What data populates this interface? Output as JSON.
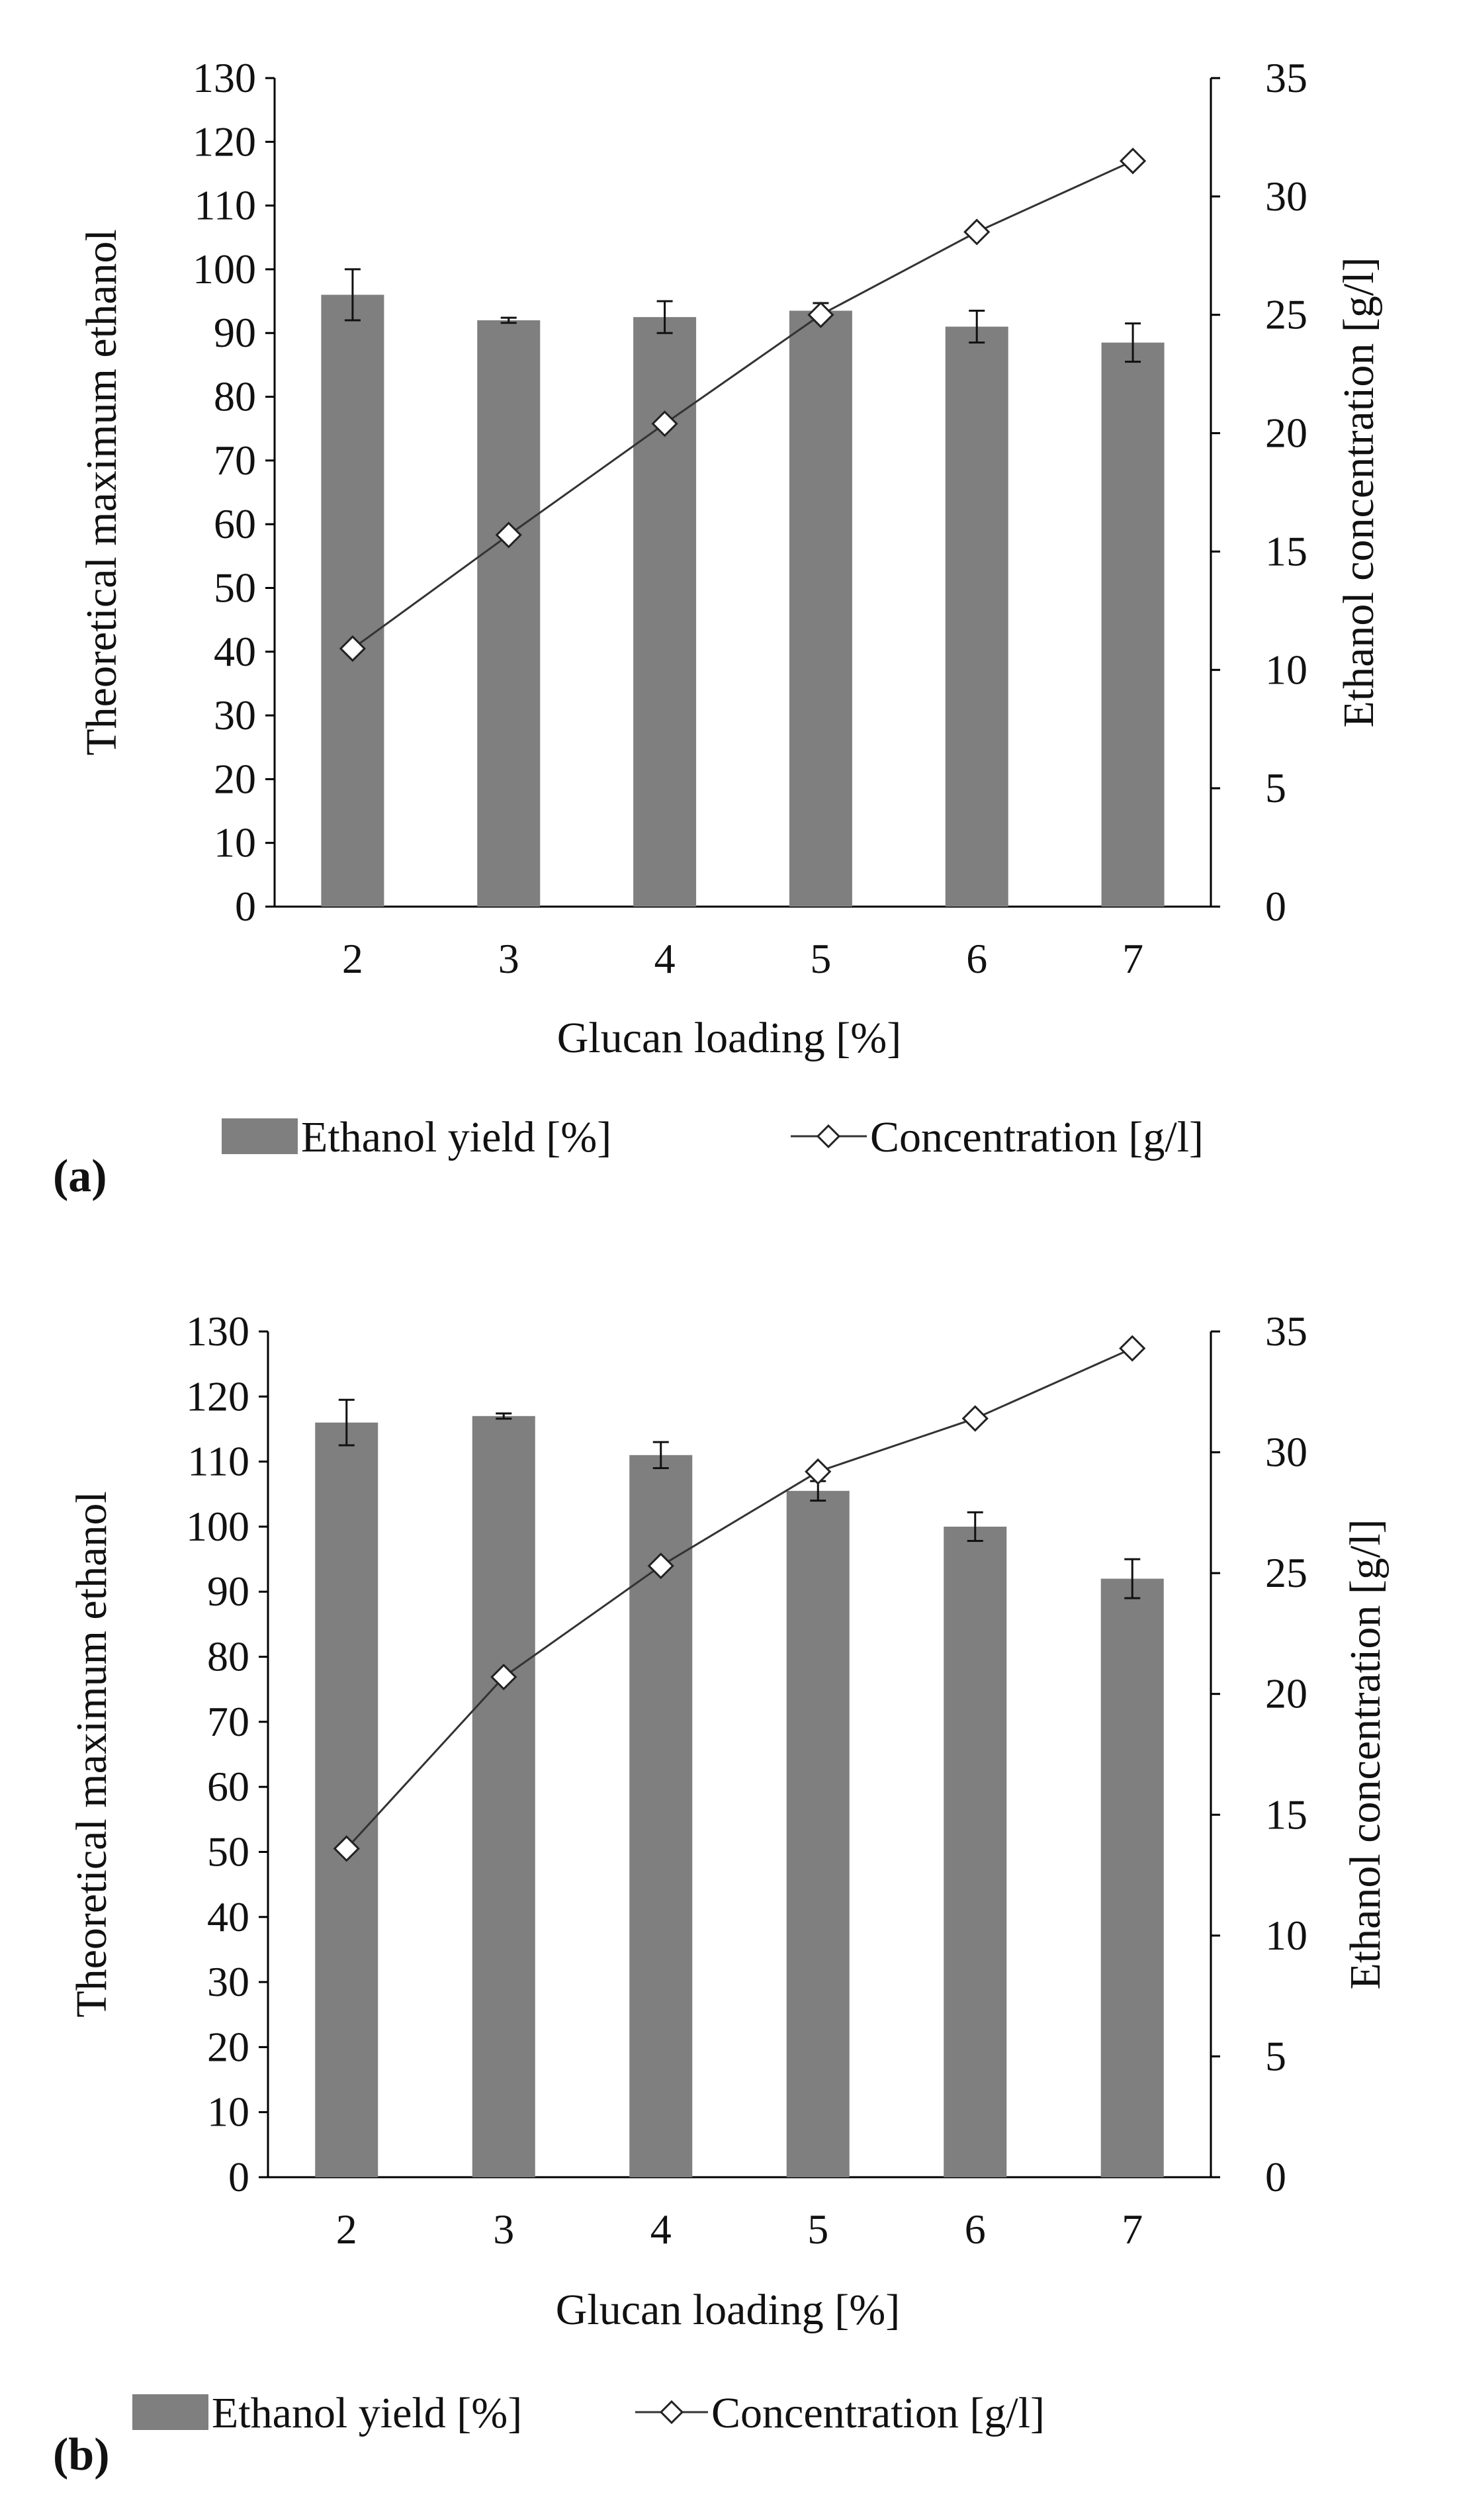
{
  "colors": {
    "bar": "#7f7f7f",
    "line": "#333333",
    "marker_fill": "#ffffff",
    "axis": "#000000"
  },
  "chart_data": [
    {
      "panel": "(a)",
      "type": "bar",
      "categories": [
        "2",
        "3",
        "4",
        "5",
        "6",
        "7"
      ],
      "xlabel": "Glucan loading [%]",
      "ylabel": "Theoretical  maximum ethanol",
      "y2label": "Ethanol concentration [g/l]",
      "ylim": [
        0,
        130
      ],
      "y2lim": [
        0,
        35
      ],
      "yticks": [
        "0",
        "10",
        "20",
        "30",
        "40",
        "50",
        "60",
        "70",
        "80",
        "90",
        "100",
        "110",
        "120",
        "130"
      ],
      "y2ticks": [
        "0",
        "5",
        "10",
        "15",
        "20",
        "25",
        "30",
        "35"
      ],
      "series": [
        {
          "name": "Ethanol yield [%]",
          "kind": "bar",
          "axis": "left",
          "values": [
            96,
            92,
            92.5,
            93.5,
            91,
            88.5
          ],
          "errors": [
            4,
            0.4,
            2.5,
            1.2,
            2.5,
            3
          ]
        },
        {
          "name": "Concentration [g/l]",
          "kind": "line",
          "axis": "right",
          "values": [
            10.9,
            15.7,
            20.4,
            25.0,
            28.5,
            31.5
          ]
        }
      ]
    },
    {
      "panel": "(b)",
      "type": "bar",
      "categories": [
        "2",
        "3",
        "4",
        "5",
        "6",
        "7"
      ],
      "xlabel": "Glucan loading [%]",
      "ylabel": "Theoretical  maximum ethanol",
      "y2label": "Ethanol concentration [g/l]",
      "ylim": [
        0,
        130
      ],
      "y2lim": [
        0,
        35
      ],
      "yticks": [
        "0",
        "10",
        "20",
        "30",
        "40",
        "50",
        "60",
        "70",
        "80",
        "90",
        "100",
        "110",
        "120",
        "130"
      ],
      "y2ticks": [
        "0",
        "5",
        "10",
        "15",
        "20",
        "25",
        "30",
        "35"
      ],
      "series": [
        {
          "name": "Ethanol yield [%]",
          "kind": "bar",
          "axis": "left",
          "values": [
            116,
            117,
            111,
            105.5,
            100,
            92
          ],
          "errors": [
            3.5,
            0.4,
            2,
            1.5,
            2.2,
            3
          ]
        },
        {
          "name": "Concentration [g/l]",
          "kind": "line",
          "axis": "right",
          "values": [
            13.6,
            20.7,
            25.3,
            29.2,
            31.4,
            34.3
          ]
        }
      ]
    }
  ]
}
